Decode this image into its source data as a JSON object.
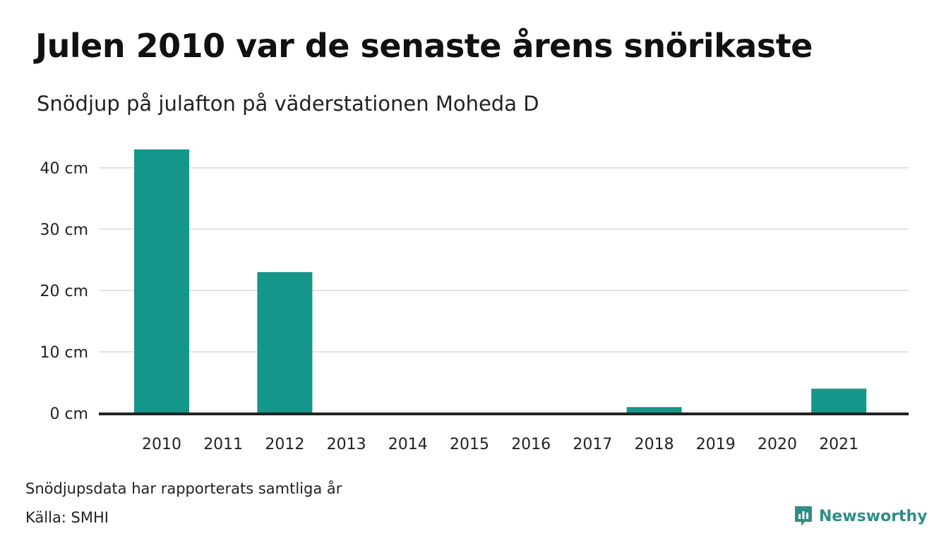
{
  "title": "Julen 2010 var de senaste årens snörikaste",
  "subtitle": "Snödjup på julafton på väderstationen Moheda D",
  "footnote": "Snödjupsdata har rapporterats samtliga år",
  "source": "Källa: SMHI",
  "brand": {
    "name": "Newsworthy",
    "icon": "newsworthy-logo-icon",
    "color": "#2f8f86"
  },
  "colors": {
    "bar": "#15968a",
    "grid": "#e3e3e3",
    "axis": "#222222"
  },
  "chart_data": {
    "type": "bar",
    "title": "Julen 2010 var de senaste årens snörikaste",
    "subtitle": "Snödjup på julafton på väderstationen Moheda D",
    "categories": [
      "2010",
      "2011",
      "2012",
      "2013",
      "2014",
      "2015",
      "2016",
      "2017",
      "2018",
      "2019",
      "2020",
      "2021"
    ],
    "values": [
      43,
      0,
      23,
      0,
      0,
      0,
      0,
      0,
      1,
      0,
      0,
      4
    ],
    "unit": "cm",
    "ylim": [
      0,
      40
    ],
    "yticks": [
      0,
      10,
      20,
      30,
      40
    ],
    "ytick_labels": [
      "0 cm",
      "10 cm",
      "20 cm",
      "30 cm",
      "40 cm"
    ],
    "grid": true,
    "legend": "none"
  }
}
